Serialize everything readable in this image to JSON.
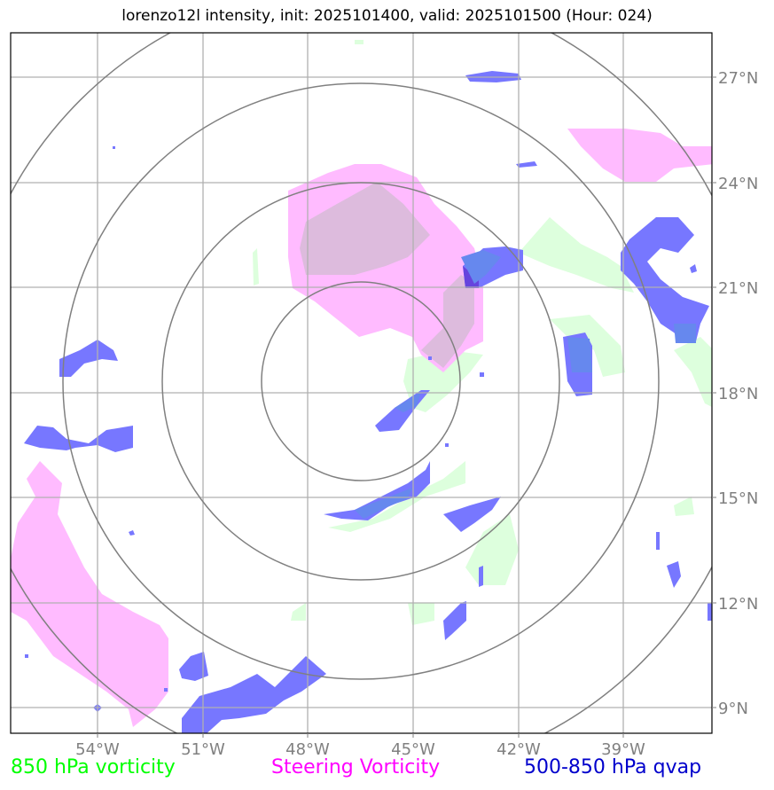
{
  "title": "lorenzo12l intensity, init: 2025101400, valid: 2025101500 (Hour: 024)",
  "map": {
    "lon_ticks": [
      {
        "value": -54,
        "label": "54°W"
      },
      {
        "value": -51,
        "label": "51°W"
      },
      {
        "value": -48,
        "label": "48°W"
      },
      {
        "value": -45,
        "label": "45°W"
      },
      {
        "value": -42,
        "label": "42°W"
      },
      {
        "value": -39,
        "label": "39°W"
      }
    ],
    "lat_ticks": [
      {
        "value": 27,
        "label": "27°N"
      },
      {
        "value": 24,
        "label": "24°N"
      },
      {
        "value": 21,
        "label": "21°N"
      },
      {
        "value": 18,
        "label": "18°N"
      },
      {
        "value": 15,
        "label": "15°N"
      },
      {
        "value": 12,
        "label": "12°N"
      },
      {
        "value": 9,
        "label": "9°N"
      }
    ],
    "extent": {
      "lon_min": -56.5,
      "lon_max": -36.5,
      "lat_min": 8.3,
      "lat_max": 28.2
    },
    "storm_center": {
      "lon": -46.5,
      "lat": 18.3
    },
    "range_ring_count": 4,
    "colors": {
      "vorticity_850": "#ddffdd",
      "steering": "#ffbbff",
      "qvap": "#7777ff",
      "rings": "#808080",
      "grid": "#b0b0b0"
    }
  },
  "legend": {
    "vort850": "850 hPa vorticity",
    "steering": "Steering Vorticity",
    "qvap": "500-850 hPa qvap"
  }
}
